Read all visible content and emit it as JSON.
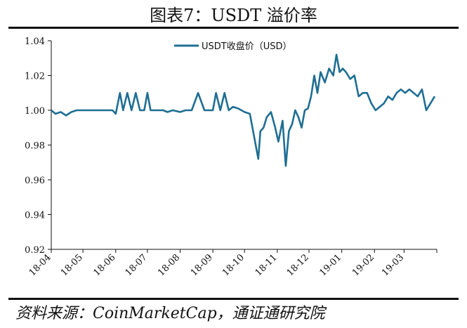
{
  "header": {
    "title": "图表7：USDT 溢价率"
  },
  "footer": {
    "source": "资料来源：CoinMarketCap，通证通研究院"
  },
  "colors": {
    "series": "#1f6e93",
    "axis": "#111111"
  },
  "chart_data": {
    "type": "line",
    "title": "",
    "xlabel": "",
    "ylabel": "",
    "ylim": [
      0.92,
      1.04
    ],
    "yticks": [
      "0.92",
      "0.94",
      "0.96",
      "0.98",
      "1.00",
      "1.02",
      "1.04"
    ],
    "xticks": [
      "18-04",
      "18-05",
      "18-06",
      "18-07",
      "18-08",
      "18-09",
      "18-10",
      "18-11",
      "18-12",
      "19-01",
      "19-02",
      "19-03"
    ],
    "grid": false,
    "legend": "top-center",
    "series": [
      {
        "name": "USDT收盘价（USD）",
        "x": [
          "2018-04-01",
          "2018-04-05",
          "2018-04-10",
          "2018-04-15",
          "2018-04-20",
          "2018-04-25",
          "2018-05-01",
          "2018-05-08",
          "2018-05-15",
          "2018-05-22",
          "2018-05-29",
          "2018-06-01",
          "2018-06-05",
          "2018-06-08",
          "2018-06-12",
          "2018-06-16",
          "2018-06-20",
          "2018-06-24",
          "2018-06-28",
          "2018-07-01",
          "2018-07-04",
          "2018-07-08",
          "2018-07-12",
          "2018-07-16",
          "2018-07-20",
          "2018-07-25",
          "2018-08-01",
          "2018-08-06",
          "2018-08-12",
          "2018-08-18",
          "2018-08-24",
          "2018-08-28",
          "2018-09-01",
          "2018-09-04",
          "2018-09-08",
          "2018-09-12",
          "2018-09-16",
          "2018-09-20",
          "2018-09-25",
          "2018-10-01",
          "2018-10-06",
          "2018-10-10",
          "2018-10-14",
          "2018-10-16",
          "2018-10-19",
          "2018-10-22",
          "2018-10-26",
          "2018-10-30",
          "2018-11-02",
          "2018-11-06",
          "2018-11-09",
          "2018-11-12",
          "2018-11-15",
          "2018-11-18",
          "2018-11-21",
          "2018-11-24",
          "2018-11-27",
          "2018-11-30",
          "2018-12-03",
          "2018-12-06",
          "2018-12-09",
          "2018-12-12",
          "2018-12-16",
          "2018-12-20",
          "2018-12-24",
          "2018-12-27",
          "2018-12-30",
          "2019-01-02",
          "2019-01-05",
          "2019-01-09",
          "2019-01-13",
          "2019-01-17",
          "2019-01-21",
          "2019-01-25",
          "2019-01-29",
          "2019-02-02",
          "2019-02-06",
          "2019-02-10",
          "2019-02-14",
          "2019-02-18",
          "2019-02-22",
          "2019-02-26",
          "2019-03-02",
          "2019-03-06",
          "2019-03-10",
          "2019-03-14",
          "2019-03-18",
          "2019-03-22",
          "2019-03-26",
          "2019-03-30"
        ],
        "values": [
          1.0,
          0.998,
          0.999,
          0.997,
          0.999,
          1.0,
          1.0,
          1.0,
          1.0,
          1.0,
          1.0,
          0.998,
          1.01,
          1.0,
          1.01,
          1.0,
          1.01,
          1.0,
          1.0,
          1.01,
          1.0,
          1.0,
          1.0,
          1.0,
          0.999,
          1.0,
          0.999,
          1.0,
          1.0,
          1.01,
          1.0,
          1.0,
          1.0,
          1.01,
          1.0,
          1.01,
          1.0,
          1.002,
          1.001,
          0.999,
          0.998,
          0.985,
          0.972,
          0.988,
          0.99,
          0.996,
          0.999,
          0.99,
          0.982,
          0.994,
          0.968,
          0.988,
          0.992,
          1.0,
          0.996,
          0.99,
          1.0,
          1.001,
          1.008,
          1.02,
          1.01,
          1.022,
          1.016,
          1.024,
          1.02,
          1.032,
          1.022,
          1.024,
          1.022,
          1.018,
          1.02,
          1.008,
          1.01,
          1.01,
          1.004,
          1.0,
          1.002,
          1.004,
          1.008,
          1.006,
          1.01,
          1.012,
          1.01,
          1.012,
          1.01,
          1.008,
          1.012,
          1.0,
          1.004,
          1.008
        ]
      }
    ]
  }
}
